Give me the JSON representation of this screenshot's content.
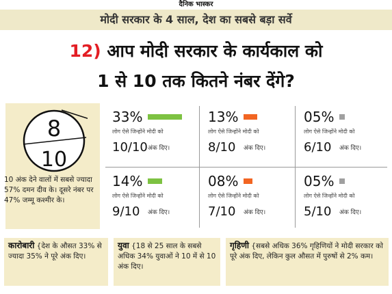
{
  "header": {
    "brand": "दैनिक भास्कर",
    "subtitle": "मोदी सरकार के 4 साल, देश का सबसे बड़ा सर्वे"
  },
  "question": {
    "number": "12)",
    "line1": "आप मोदी सरकार के कार्यकाल को",
    "line2": "1 से 10 तक कितने नंबर देंगे?"
  },
  "gauge": {
    "numerator": "8",
    "denominator": "10"
  },
  "left_note": "10 अंक देने वालों में सबसे ज्यादा 57% दमन दीव के। दूसरे नंबर पर 47% जम्मू कश्मीर के।",
  "colors": {
    "green": "#7dc242",
    "orange": "#f26522",
    "gray": "#a0a0a0",
    "red": "#e31e24",
    "panel_bg": "#f4ecc9"
  },
  "cells": [
    {
      "pct": "33%",
      "bar_color": "green",
      "bar_fraction": 1.0,
      "desc": "लोग ऐसे जिन्होंने मोदी को",
      "score": "10/10",
      "suffix": "अंक दिए।"
    },
    {
      "pct": "13%",
      "bar_color": "orange",
      "bar_fraction": 0.4,
      "desc": "लोग ऐसे जिन्होंने मोदी को",
      "score": "8/10",
      "suffix": "अंक दिए।"
    },
    {
      "pct": "05%",
      "bar_color": "gray",
      "bar_fraction": 0.15,
      "desc": "लोग ऐसे जिन्होंने मोदी को",
      "score": "6/10",
      "suffix": "अंक दिए।"
    },
    {
      "pct": "14%",
      "bar_color": "green",
      "bar_fraction": 0.42,
      "desc": "लोग ऐसे जिन्होंने मोदी को",
      "score": "9/10",
      "suffix": "अंक दिए।"
    },
    {
      "pct": "08%",
      "bar_color": "orange",
      "bar_fraction": 0.25,
      "desc": "लोग ऐसे जिन्होंने मोदी को",
      "score": "7/10",
      "suffix": "अंक दिए।"
    },
    {
      "pct": "05%",
      "bar_color": "gray",
      "bar_fraction": 0.15,
      "desc": "लोग ऐसे जिन्होंने मोदी को",
      "score": "5/10",
      "suffix": "अंक दिए।"
    }
  ],
  "bottom": [
    {
      "head": "कारोबारी",
      "text": "{देश के औसत 33% से ज्यादा 35% ने पूरे अंक दिए।"
    },
    {
      "head": "युवा",
      "text": "{18 से 25 साल के सबसे अधिक 34% युवाओं ने 10 में से 10 अंक दिए।"
    },
    {
      "head": "गृहिणी",
      "text": "{सबसे अधिक 36% गृहिणियों ने मोदी सरकार को पूरे अंक दिए, लेकिन कुल औसत में पुरुषों से 2% कम।"
    }
  ]
}
